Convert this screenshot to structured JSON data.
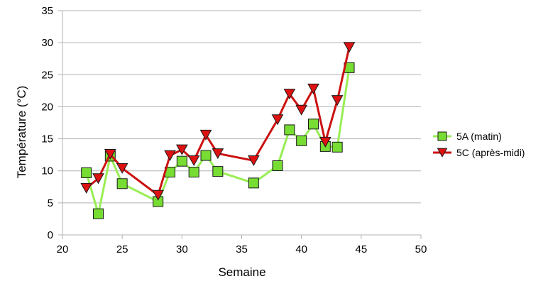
{
  "chart_data": {
    "type": "line",
    "xlabel": "Semaine",
    "ylabel": "Température (°C)",
    "xlim": [
      20,
      50
    ],
    "ylim": [
      0,
      35
    ],
    "x_ticks": [
      "20",
      "25",
      "30",
      "35",
      "40",
      "45",
      "50"
    ],
    "y_ticks": [
      "0",
      "5",
      "10",
      "15",
      "20",
      "25",
      "30",
      "35"
    ],
    "grid": "horizontal",
    "legend_position": "right",
    "series": [
      {
        "name": "5A (matin)",
        "color": "#99ee55",
        "marker": "square",
        "marker_fill": "#77dd33",
        "points": [
          {
            "x": 22,
            "y": 9.7
          },
          {
            "x": 23,
            "y": 3.3
          },
          {
            "x": 24,
            "y": 12.3
          },
          {
            "x": 25,
            "y": 8.0
          },
          {
            "x": 28,
            "y": 5.2
          },
          {
            "x": 29,
            "y": 9.8
          },
          {
            "x": 30,
            "y": 11.5
          },
          {
            "x": 31,
            "y": 9.8
          },
          {
            "x": 32,
            "y": 12.4
          },
          {
            "x": 33,
            "y": 9.9
          },
          {
            "x": 36,
            "y": 8.1
          },
          {
            "x": 38,
            "y": 10.8
          },
          {
            "x": 39,
            "y": 16.4
          },
          {
            "x": 40,
            "y": 14.7
          },
          {
            "x": 41,
            "y": 17.3
          },
          {
            "x": 42,
            "y": 13.8
          },
          {
            "x": 43,
            "y": 13.7
          },
          {
            "x": 44,
            "y": 26.1
          }
        ]
      },
      {
        "name": "5C (après-midi)",
        "color": "#cc1111",
        "marker": "triangle-down",
        "marker_fill": "#dd1111",
        "points": [
          {
            "x": 22,
            "y": 7.3
          },
          {
            "x": 23,
            "y": 8.8
          },
          {
            "x": 24,
            "y": 12.6
          },
          {
            "x": 25,
            "y": 10.4
          },
          {
            "x": 28,
            "y": 6.2
          },
          {
            "x": 29,
            "y": 12.4
          },
          {
            "x": 30,
            "y": 13.3
          },
          {
            "x": 31,
            "y": 11.6
          },
          {
            "x": 32,
            "y": 15.6
          },
          {
            "x": 33,
            "y": 12.7
          },
          {
            "x": 36,
            "y": 11.6
          },
          {
            "x": 38,
            "y": 18.0
          },
          {
            "x": 39,
            "y": 22.0
          },
          {
            "x": 40,
            "y": 19.5
          },
          {
            "x": 41,
            "y": 22.8
          },
          {
            "x": 42,
            "y": 14.5
          },
          {
            "x": 43,
            "y": 21.0
          },
          {
            "x": 44,
            "y": 29.3
          }
        ]
      }
    ]
  }
}
